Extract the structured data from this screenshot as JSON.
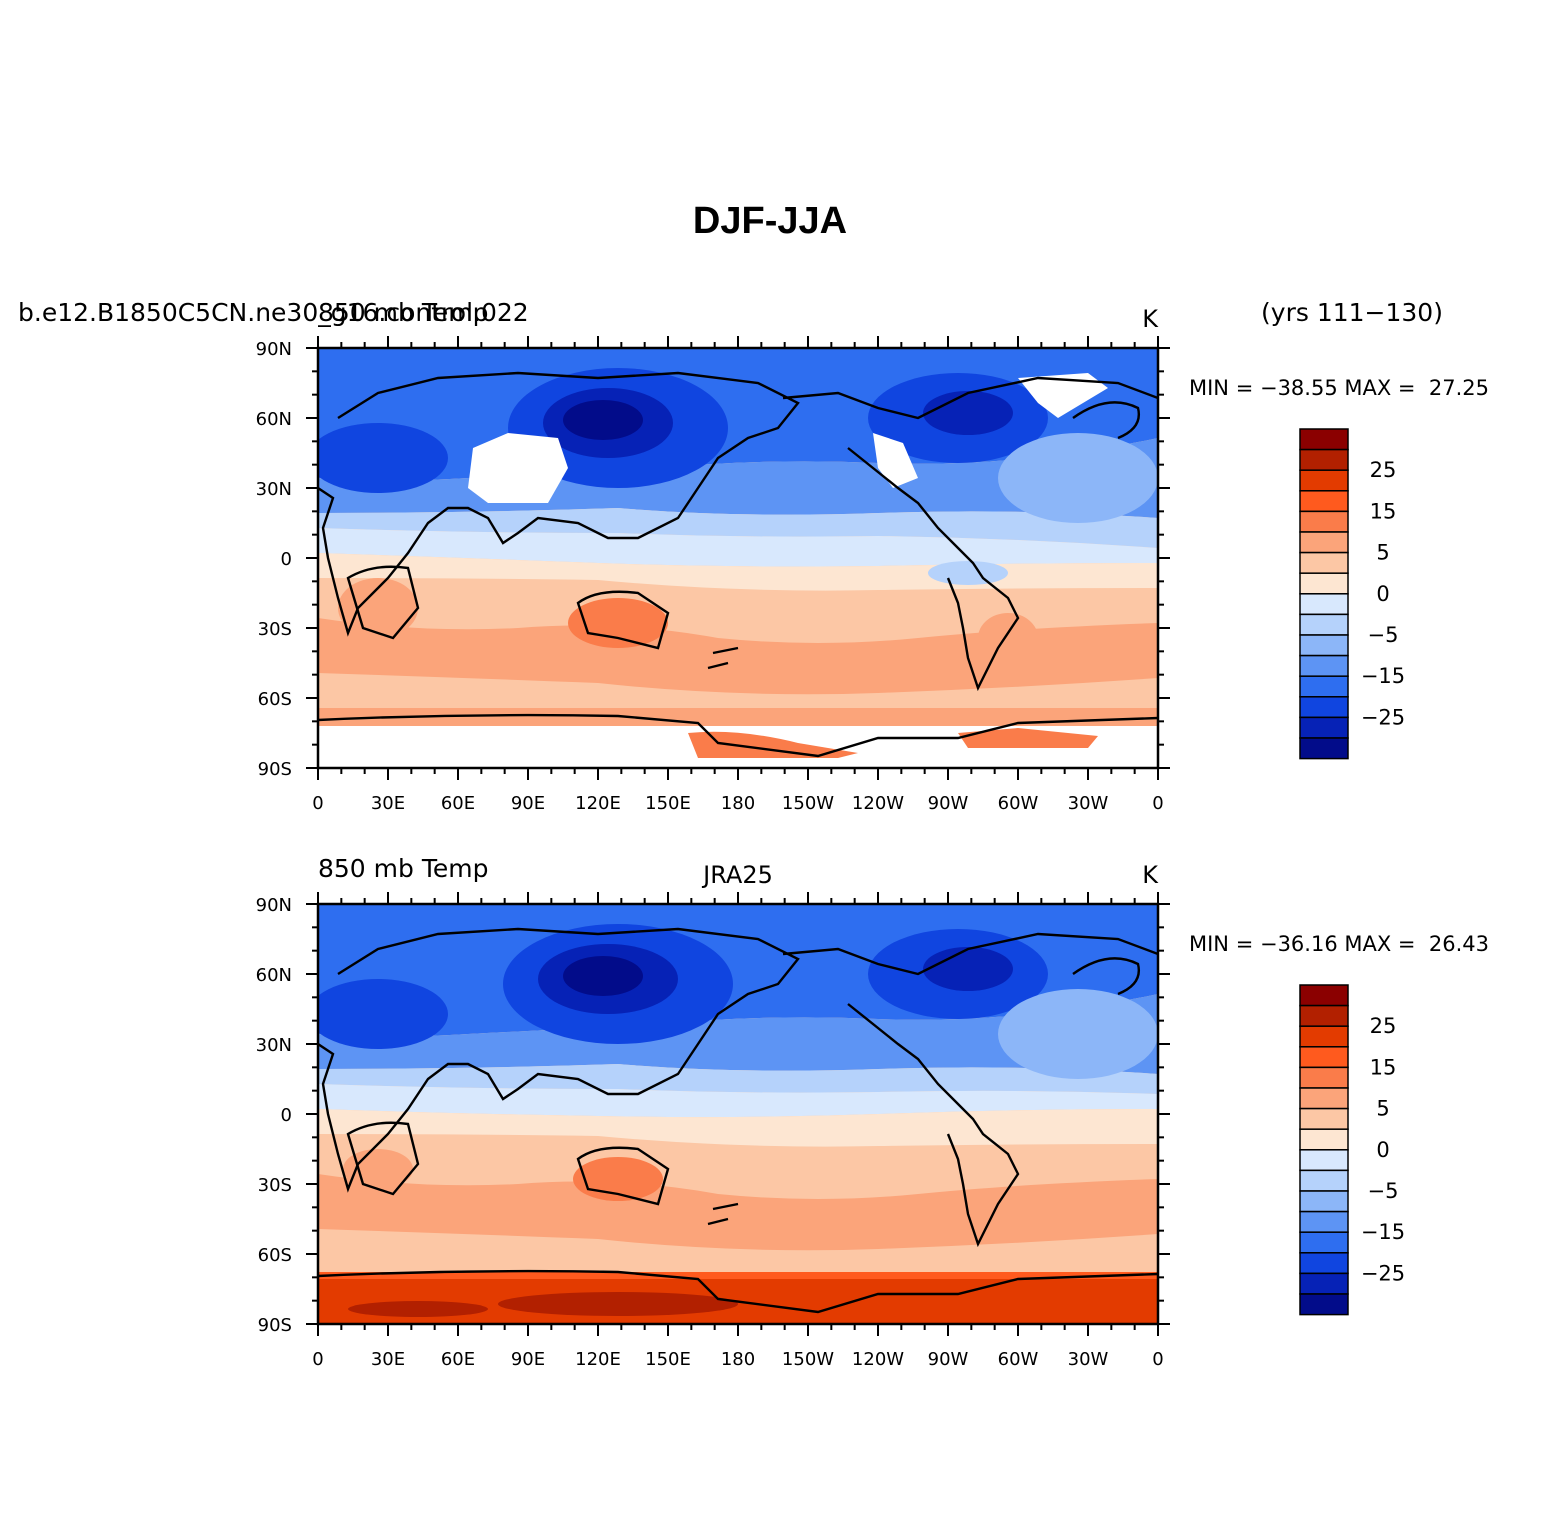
{
  "title": "DJF-JJA",
  "axes": {
    "lat_ticks": [
      "90N",
      "60N",
      "30N",
      "0",
      "30S",
      "60S",
      "90S"
    ],
    "lon_ticks": [
      "0",
      "30E",
      "60E",
      "90E",
      "120E",
      "150E",
      "180",
      "150W",
      "120W",
      "90W",
      "60W",
      "30W",
      "0"
    ]
  },
  "colorbar": {
    "labels": [
      "25",
      "15",
      "5",
      "0",
      "−5",
      "−15",
      "−25"
    ],
    "colors": [
      "#8b0000",
      "#b22000",
      "#e33b00",
      "#ff5a1e",
      "#fa7c4a",
      "#fba47a",
      "#fcc7a5",
      "#fde6d2",
      "#d8e8fd",
      "#b5d2fb",
      "#8cb6f8",
      "#5d94f4",
      "#2e6ef0",
      "#1045e0",
      "#0622b6",
      "#020c8a"
    ]
  },
  "panels": [
    {
      "left_title": "b.e12.B1850C5CN.ne30_g16.control.022",
      "left_title_overlay": "850 mb Temp",
      "center_title": "",
      "units": "K",
      "right_title": "(yrs 111−130)",
      "min_max": "MIN = −38.55 MAX =  27.25"
    },
    {
      "left_title": "850 mb Temp",
      "left_title_overlay": "",
      "center_title": "JRA25",
      "units": "K",
      "right_title": "",
      "min_max": "MIN = −36.16 MAX =  26.43"
    }
  ]
}
